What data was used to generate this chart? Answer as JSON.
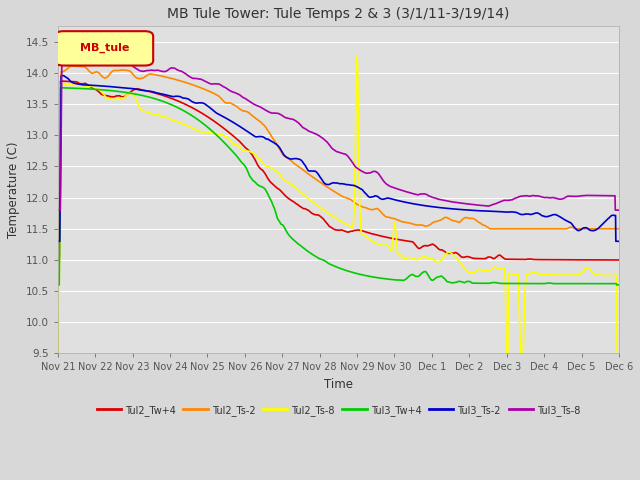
{
  "title": "MB Tule Tower: Tule Temps 2 & 3 (3/1/11-3/19/14)",
  "xlabel": "Time",
  "ylabel": "Temperature (C)",
  "ylim": [
    9.5,
    14.75
  ],
  "yticks": [
    9.5,
    10.0,
    10.5,
    11.0,
    11.5,
    12.0,
    12.5,
    13.0,
    13.5,
    14.0,
    14.5
  ],
  "background_color": "#d8d8d8",
  "plot_bg_color": "#e0e0e0",
  "legend_label": "MB_tule",
  "legend_box_color": "#ffff99",
  "legend_text_color": "#cc0000",
  "series": [
    {
      "name": "Tul2_Tw+4",
      "color": "#dd0000",
      "lw": 1.2
    },
    {
      "name": "Tul2_Ts-2",
      "color": "#ff8800",
      "lw": 1.2
    },
    {
      "name": "Tul2_Ts-8",
      "color": "#ffff00",
      "lw": 1.2
    },
    {
      "name": "Tul3_Tw+4",
      "color": "#00cc00",
      "lw": 1.2
    },
    {
      "name": "Tul3_Ts-2",
      "color": "#0000cc",
      "lw": 1.2
    },
    {
      "name": "Tul3_Ts-8",
      "color": "#aa00aa",
      "lw": 1.2
    }
  ],
  "xtick_labels": [
    "Nov 21",
    "Nov 22",
    "Nov 23",
    "Nov 24",
    "Nov 25",
    "Nov 26",
    "Nov 27",
    "Nov 28",
    "Nov 29",
    "Nov 30",
    "Dec 1",
    "Dec 2",
    "Dec 3",
    "Dec 4",
    "Dec 5",
    "Dec 6"
  ],
  "figsize": [
    6.4,
    4.8
  ],
  "dpi": 100
}
